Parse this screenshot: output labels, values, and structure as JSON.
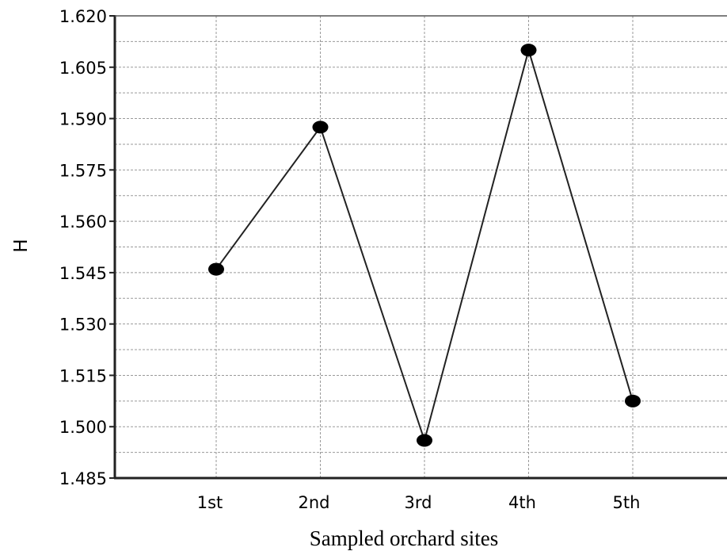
{
  "chart_data": {
    "type": "line",
    "title": "",
    "xlabel": "Sampled orchard sites",
    "ylabel": "H",
    "categories": [
      "1st",
      "2nd",
      "3rd",
      "4th",
      "5th"
    ],
    "series": [
      {
        "values": [
          1.546,
          1.5875,
          1.496,
          1.61,
          1.5075
        ]
      }
    ],
    "ylim": [
      1.485,
      1.62
    ],
    "yticks": [
      "1.485",
      "1.500",
      "1.515",
      "1.530",
      "1.545",
      "1.560",
      "1.575",
      "1.590",
      "1.605",
      "1.620"
    ],
    "grid": true,
    "legend": "none",
    "colors": {
      "line": "#222222",
      "marker": "#000000",
      "grid": "#9a9a9a",
      "axis": "#222222"
    }
  }
}
